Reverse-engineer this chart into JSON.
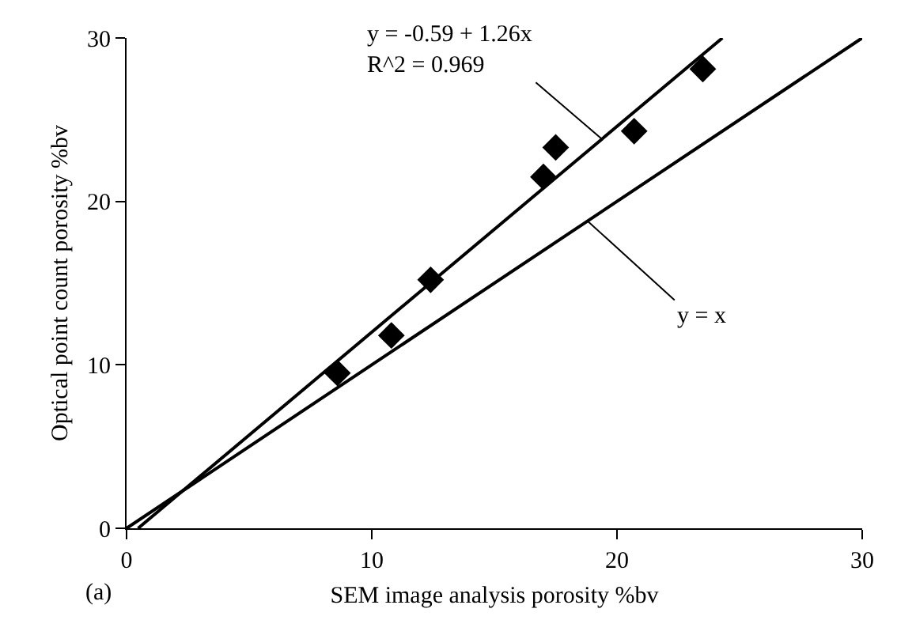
{
  "chart_data": {
    "type": "scatter",
    "xlabel": "SEM image analysis porosity %bv",
    "ylabel": "Optical point count porosity %bv",
    "x": [
      8.6,
      10.8,
      12.4,
      17.0,
      17.5,
      20.7,
      23.5
    ],
    "series": [
      {
        "color": "#000000",
        "marker": "diamond",
        "values": [
          9.5,
          11.8,
          15.2,
          21.5,
          23.3,
          24.3,
          28.1
        ]
      },
      {
        "type": "line",
        "color": "#000000",
        "marker": "none",
        "x": [
          0.47,
          24.3
        ],
        "values": [
          0,
          30
        ]
      },
      {
        "type": "line",
        "color": "#000000",
        "marker": "none",
        "x": [
          0,
          30
        ],
        "values": [
          0,
          30
        ]
      }
    ],
    "xlim": [
      0,
      30
    ],
    "ylim": [
      0,
      30
    ],
    "xticks": [
      0,
      10,
      20,
      30
    ],
    "yticks": [
      0,
      10,
      20,
      30
    ],
    "grid": false,
    "annotations": [
      {
        "text": "y = -0.59 + 1.26x\nR^2 = 0.969",
        "x": 19.4,
        "y": 23.8
      },
      {
        "text": "y = x",
        "x": 18.8,
        "y": 18.8
      },
      "(a)"
    ]
  }
}
